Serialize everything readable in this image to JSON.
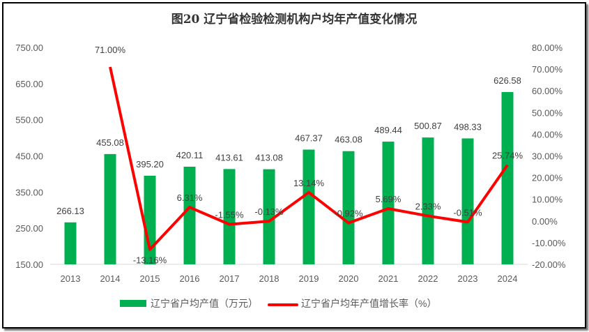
{
  "chart_data": {
    "type": "bar+line",
    "title": "图20  辽宁省检验检测机构户均年产值变化情况",
    "categories": [
      "2013",
      "2014",
      "2015",
      "2016",
      "2017",
      "2018",
      "2019",
      "2020",
      "2021",
      "2022",
      "2023",
      "2024"
    ],
    "series": [
      {
        "name": "辽宁省户均产值（万元）",
        "type": "bar",
        "axis": "left",
        "color": "#00B050",
        "values": [
          266.13,
          455.08,
          395.2,
          420.11,
          413.61,
          413.08,
          467.37,
          463.08,
          489.44,
          500.87,
          498.33,
          626.58
        ],
        "labels": [
          "266.13",
          "455.08",
          "395.20",
          "420.11",
          "413.61",
          "413.08",
          "467.37",
          "463.08",
          "489.44",
          "500.87",
          "498.33",
          "626.58"
        ]
      },
      {
        "name": "辽宁省户均年产值增长率（%）",
        "type": "line",
        "axis": "right",
        "color": "#FF0000",
        "values": [
          null,
          71.0,
          -13.16,
          6.31,
          -1.55,
          -0.13,
          13.14,
          -0.92,
          5.69,
          2.33,
          -0.51,
          25.74
        ],
        "labels": [
          "",
          "71.00%",
          "-13.16%",
          "6.31%",
          "-1.55%",
          "-0.13%",
          "13.14%",
          "-0.92%",
          "5.69%",
          "2.33%",
          "-0.51%",
          "25.74%"
        ]
      }
    ],
    "y_left": {
      "lim": [
        150,
        750
      ],
      "ticks": [
        "150.00",
        "250.00",
        "350.00",
        "450.00",
        "550.00",
        "650.00",
        "750.00"
      ]
    },
    "y_right": {
      "lim": [
        -20,
        80
      ],
      "ticks": [
        "-20.00%",
        "-10.00%",
        "0.00%",
        "10.00%",
        "20.00%",
        "30.00%",
        "40.00%",
        "50.00%",
        "60.00%",
        "70.00%",
        "80.00%"
      ]
    },
    "grid": false,
    "legend": "bottom"
  }
}
